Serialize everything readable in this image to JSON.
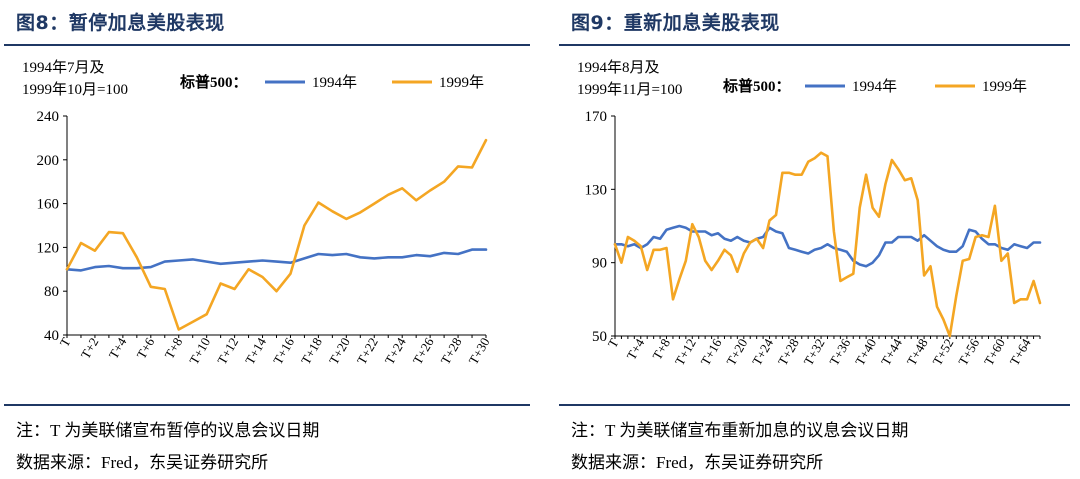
{
  "figures": [
    {
      "title": "图8：暂停加息美股表现",
      "base_note": [
        "1994年7月及",
        "1999年10月=100"
      ],
      "legend_title": "标普500：",
      "note": "注：T 为美联储宣布暂停的议息会议日期",
      "source": "数据来源：Fred，东吴证券研究所"
    },
    {
      "title": "图9：重新加息美股表现",
      "base_note": [
        "1994年8月及",
        "1999年11月=100"
      ],
      "legend_title": "标普500：",
      "note": "注：T 为美联储宣布重新加息的议息会议日期",
      "source": "数据来源：Fred，东吴证券研究所"
    }
  ],
  "colors": {
    "series_1994": "#4472c4",
    "series_1999": "#f4a623",
    "title": "#1f3864"
  },
  "chart_data": [
    {
      "type": "line",
      "x": [
        "T",
        "T+1",
        "T+2",
        "T+3",
        "T+4",
        "T+5",
        "T+6",
        "T+7",
        "T+8",
        "T+9",
        "T+10",
        "T+11",
        "T+12",
        "T+13",
        "T+14",
        "T+15",
        "T+16",
        "T+17",
        "T+18",
        "T+19",
        "T+20",
        "T+21",
        "T+22",
        "T+23",
        "T+24",
        "T+25",
        "T+26",
        "T+27",
        "T+28",
        "T+29",
        "T+30"
      ],
      "tick_labels": [
        "T",
        "T+2",
        "T+4",
        "T+6",
        "T+8",
        "T+10",
        "T+12",
        "T+14",
        "T+16",
        "T+18",
        "T+20",
        "T+22",
        "T+24",
        "T+26",
        "T+28",
        "T+30"
      ],
      "ylim": [
        40,
        240
      ],
      "yticks": [
        40,
        80,
        120,
        160,
        200,
        240
      ],
      "series": [
        {
          "name": "1994年",
          "values": [
            100,
            99,
            102,
            103,
            101,
            101,
            102,
            107,
            108,
            109,
            107,
            105,
            106,
            107,
            108,
            107,
            106,
            110,
            114,
            113,
            114,
            111,
            110,
            111,
            111,
            113,
            112,
            115,
            114,
            118,
            118
          ]
        },
        {
          "name": "1999年",
          "values": [
            100,
            124,
            117,
            134,
            133,
            111,
            84,
            82,
            45,
            52,
            59,
            87,
            82,
            100,
            93,
            80,
            96,
            140,
            161,
            153,
            146,
            152,
            160,
            168,
            174,
            163,
            172,
            180,
            194,
            193,
            218
          ]
        }
      ]
    },
    {
      "type": "line",
      "x": [
        "T",
        "T+1",
        "T+2",
        "T+3",
        "T+4",
        "T+5",
        "T+6",
        "T+7",
        "T+8",
        "T+9",
        "T+10",
        "T+11",
        "T+12",
        "T+13",
        "T+14",
        "T+15",
        "T+16",
        "T+17",
        "T+18",
        "T+19",
        "T+20",
        "T+21",
        "T+22",
        "T+23",
        "T+24",
        "T+25",
        "T+26",
        "T+27",
        "T+28",
        "T+29",
        "T+30",
        "T+31",
        "T+32",
        "T+33",
        "T+34",
        "T+35",
        "T+36",
        "T+37",
        "T+38",
        "T+39",
        "T+40",
        "T+41",
        "T+42",
        "T+43",
        "T+44",
        "T+45",
        "T+46",
        "T+47",
        "T+48",
        "T+49",
        "T+50",
        "T+51",
        "T+52",
        "T+53",
        "T+54",
        "T+55",
        "T+56",
        "T+57",
        "T+58",
        "T+59",
        "T+60",
        "T+61",
        "T+62",
        "T+63",
        "T+64",
        "T+65",
        "T+66"
      ],
      "tick_labels": [
        "T",
        "T+4",
        "T+8",
        "T+12",
        "T+16",
        "T+20",
        "T+24",
        "T+28",
        "T+32",
        "T+36",
        "T+40",
        "T+44",
        "T+48",
        "T+52",
        "T+56",
        "T+60",
        "T+64"
      ],
      "ylim": [
        50,
        170
      ],
      "yticks": [
        50,
        90,
        130,
        170
      ],
      "series": [
        {
          "name": "1994年",
          "values": [
            100,
            100,
            99,
            100,
            98,
            100,
            104,
            103,
            108,
            109,
            110,
            109,
            107,
            107,
            107,
            105,
            106,
            103,
            102,
            104,
            102,
            101,
            103,
            104,
            109,
            107,
            106,
            98,
            97,
            96,
            95,
            97,
            98,
            100,
            98,
            97,
            96,
            91,
            89,
            88,
            90,
            94,
            101,
            101,
            104,
            104,
            104,
            102,
            105,
            102,
            99,
            97,
            96,
            96,
            99,
            108,
            107,
            103,
            100,
            100,
            98,
            97,
            100,
            99,
            98,
            101,
            101
          ]
        },
        {
          "name": "1999年",
          "values": [
            100,
            90,
            104,
            102,
            99,
            86,
            97,
            97,
            98,
            70,
            81,
            91,
            111,
            104,
            91,
            86,
            91,
            97,
            94,
            85,
            95,
            101,
            103,
            98,
            113,
            116,
            139,
            139,
            138,
            138,
            145,
            147,
            150,
            148,
            107,
            80,
            82,
            84,
            120,
            138,
            120,
            115,
            133,
            146,
            141,
            135,
            136,
            124,
            83,
            88,
            66,
            59,
            50,
            72,
            91,
            92,
            104,
            105,
            104,
            121,
            91,
            95,
            68,
            70,
            70,
            80,
            68
          ]
        }
      ]
    }
  ]
}
